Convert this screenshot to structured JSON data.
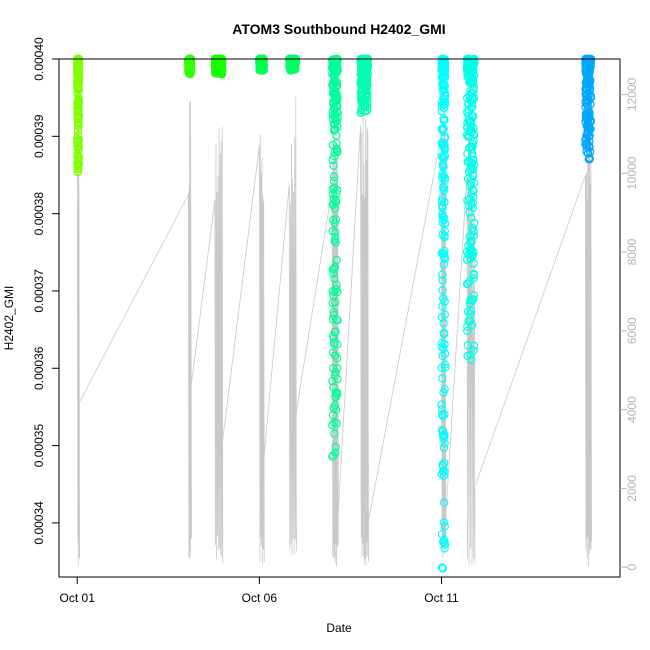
{
  "chart_data": {
    "type": "scatter",
    "title": "ATOM3 Southbound H2402_GMI",
    "xlabel": "Date",
    "ylabel": "H2402_GMI",
    "x_ticks": [
      {
        "label": "Oct 01",
        "day": 1
      },
      {
        "label": "Oct 06",
        "day": 6
      },
      {
        "label": "Oct 11",
        "day": 11
      }
    ],
    "xlim_days": [
      0.5,
      15.9
    ],
    "ylim": [
      0.000333,
      0.0004
    ],
    "y_ticks": [
      0.00034,
      0.00035,
      0.00036,
      0.00037,
      0.00038,
      0.00039,
      0.0004
    ],
    "y_tick_labels": [
      "0.00034",
      "0.00035",
      "0.00036",
      "0.00037",
      "0.00038",
      "0.00039",
      "0.00040"
    ],
    "secondary_y": {
      "lim": [
        -250,
        12900
      ],
      "ticks": [
        0,
        2000,
        4000,
        6000,
        8000,
        10000,
        12000
      ],
      "tick_labels": [
        "0",
        "2000",
        "4000",
        "6000",
        "8000",
        "10000",
        "12000"
      ],
      "color": "#b3b3b3"
    },
    "series": [
      {
        "day_start": 1.0,
        "day_end": 1.05,
        "y_min": 0.000385,
        "y_max": 0.0004,
        "color": "#80ff00"
      },
      {
        "day_start": 4.05,
        "day_end": 4.12,
        "y_min": 0.000398,
        "y_max": 0.0004,
        "color": "#33ff00"
      },
      {
        "day_start": 4.78,
        "day_end": 4.98,
        "y_min": 0.000398,
        "y_max": 0.0004,
        "color": "#19ff00"
      },
      {
        "day_start": 6.0,
        "day_end": 6.12,
        "y_min": 0.000399,
        "y_max": 0.0004,
        "color": "#00ff4d"
      },
      {
        "day_start": 6.82,
        "day_end": 7.0,
        "y_min": 0.000399,
        "y_max": 0.0004,
        "color": "#00ff66"
      },
      {
        "day_start": 8.0,
        "day_end": 8.15,
        "y_min": 0.000348,
        "y_max": 0.0004,
        "color": "#00ff99"
      },
      {
        "day_start": 8.78,
        "day_end": 8.98,
        "y_min": 0.000393,
        "y_max": 0.0004,
        "color": "#00ffb3"
      },
      {
        "day_start": 11.0,
        "day_end": 11.1,
        "y_min": 0.000334,
        "y_max": 0.0004,
        "color": "#00ffff"
      },
      {
        "day_start": 11.7,
        "day_end": 11.9,
        "y_min": 0.000361,
        "y_max": 0.0004,
        "color": "#00ffe6"
      },
      {
        "day_start": 14.95,
        "day_end": 15.1,
        "y_min": 0.000387,
        "y_max": 0.0004,
        "color": "#00a6ff"
      }
    ],
    "trace_color": "#c8c8c8"
  }
}
